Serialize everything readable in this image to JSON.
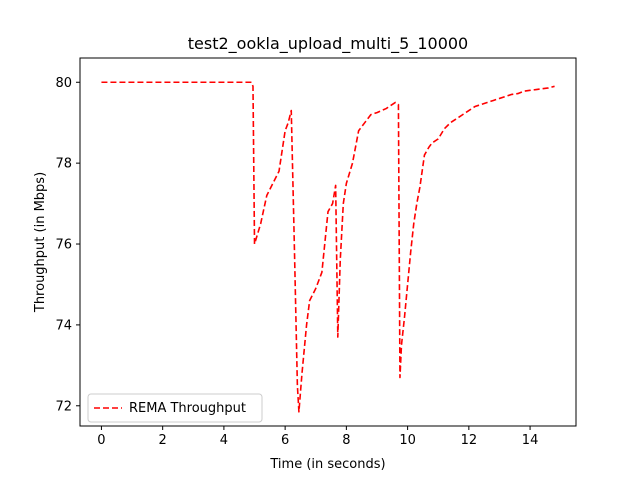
{
  "chart_data": {
    "type": "line",
    "title": "test2_ookla_upload_multi_5_10000",
    "xlabel": "Time (in seconds)",
    "ylabel": "Throughput (in Mbps)",
    "xlim": [
      -0.7,
      15.5
    ],
    "ylim": [
      71.5,
      80.6
    ],
    "xticks": [
      0,
      2,
      4,
      6,
      8,
      10,
      12,
      14
    ],
    "yticks": [
      72,
      74,
      76,
      78,
      80
    ],
    "grid": false,
    "legend": {
      "position": "lower-left"
    },
    "series": [
      {
        "name": "REMA Throughput",
        "color": "#ff0000",
        "style": "dashed",
        "x": [
          0,
          4.9,
          4.95,
          5.0,
          5.2,
          5.4,
          5.6,
          5.8,
          6.0,
          6.1,
          6.2,
          6.3,
          6.4,
          6.45,
          6.55,
          6.7,
          6.8,
          7.0,
          7.2,
          7.4,
          7.55,
          7.65,
          7.72,
          7.8,
          7.9,
          8.0,
          8.2,
          8.4,
          8.6,
          8.8,
          9.0,
          9.3,
          9.6,
          9.7,
          9.75,
          9.8,
          9.9,
          10.0,
          10.1,
          10.2,
          10.3,
          10.4,
          10.55,
          10.7,
          10.8,
          11.0,
          11.2,
          11.4,
          11.6,
          11.8,
          12.0,
          12.2,
          12.4,
          12.6,
          12.8,
          13.0,
          13.2,
          13.4,
          13.6,
          13.8,
          14.0,
          14.2,
          14.4,
          14.6,
          14.8
        ],
        "values": [
          80.0,
          80.0,
          79.9,
          76.0,
          76.5,
          77.2,
          77.5,
          77.8,
          78.8,
          79.0,
          79.3,
          76.0,
          72.5,
          71.85,
          72.8,
          74.0,
          74.6,
          74.9,
          75.3,
          76.8,
          77.0,
          77.45,
          73.7,
          75.6,
          77.0,
          77.5,
          78.0,
          78.8,
          79.0,
          79.2,
          79.25,
          79.35,
          79.5,
          79.45,
          72.7,
          73.5,
          74.2,
          75.0,
          75.8,
          76.5,
          77.0,
          77.4,
          78.2,
          78.4,
          78.5,
          78.6,
          78.85,
          79.0,
          79.1,
          79.2,
          79.3,
          79.4,
          79.45,
          79.5,
          79.55,
          79.6,
          79.65,
          79.7,
          79.72,
          79.78,
          79.8,
          79.82,
          79.84,
          79.86,
          79.9
        ]
      }
    ]
  }
}
